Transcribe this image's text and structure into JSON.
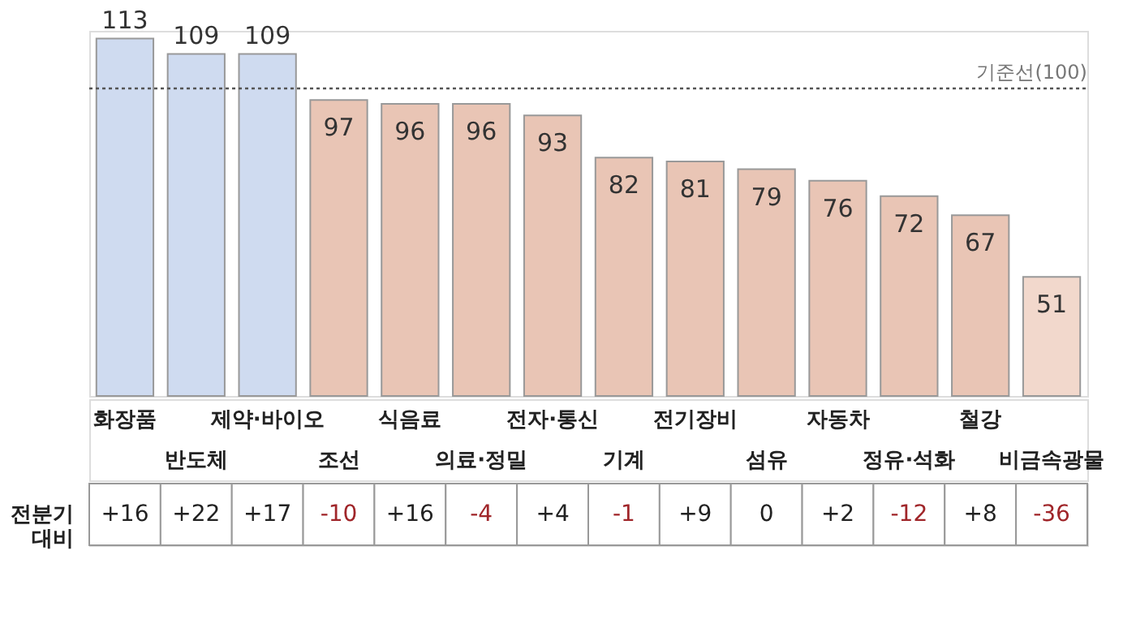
{
  "chart_data": [
    {
      "type": "bar",
      "categories": [
        "화장품",
        "반도체",
        "제약·바이오",
        "조선",
        "식음료",
        "의료·정밀",
        "전자·통신",
        "기계",
        "전기장비",
        "섬유",
        "자동차",
        "정유·석화",
        "철강",
        "비금속광물"
      ],
      "values": [
        113,
        109,
        109,
        97,
        96,
        96,
        93,
        82,
        81,
        79,
        76,
        72,
        67,
        51
      ],
      "colors": [
        "#cfdbf0",
        "#cfdbf0",
        "#cfdbf0",
        "#e9c5b5",
        "#e9c5b5",
        "#e9c5b5",
        "#e9c5b5",
        "#e9c5b5",
        "#e9c5b5",
        "#e9c5b5",
        "#e9c5b5",
        "#e9c5b5",
        "#e9c5b5",
        "#f2d8cc"
      ],
      "ylim": [
        20,
        115
      ],
      "data_labels": true,
      "tick_labels": "x",
      "ref_lines": [
        {
          "axis": "y",
          "value": 100,
          "label": "기준선(100)",
          "line_style": "dotted",
          "color": "#555555"
        }
      ]
    },
    {
      "type": "heatmap",
      "categories": [
        null,
        null,
        null,
        null,
        null,
        null,
        null,
        null,
        null,
        null,
        null,
        null,
        null,
        null
      ],
      "y_categories": [
        "전분기 대비"
      ],
      "cells": [
        [
          16,
          22,
          17,
          -10,
          16,
          -4,
          4,
          -1,
          9,
          0,
          2,
          -12,
          8,
          -36
        ]
      ],
      "cell_labels": [
        [
          "+16",
          "+22",
          "+17",
          "-10",
          "+16",
          "-4",
          "+4",
          "-1",
          "+9",
          "0",
          "+2",
          "-12",
          "+8",
          "-36"
        ]
      ],
      "tick_labels": "y"
    }
  ]
}
